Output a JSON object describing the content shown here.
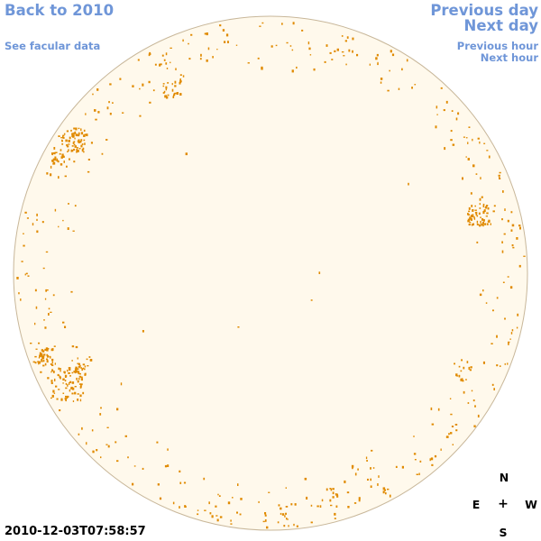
{
  "nav": {
    "back_label": "Back to 2010",
    "facular_label": "See facular data",
    "prev_day_label": "Previous day",
    "next_day_label": "Next day",
    "prev_hour_label": "Previous hour",
    "next_hour_label": "Next hour"
  },
  "timestamp": "2010-12-03T07:58:57",
  "compass": {
    "north": "N",
    "east": "E",
    "center": "+",
    "west": "W",
    "south": "S"
  },
  "colors": {
    "link": "#6f96d8",
    "disk_fill": "#fff9ec",
    "disk_border": "#c8b79a",
    "feature": "#e08a00"
  }
}
